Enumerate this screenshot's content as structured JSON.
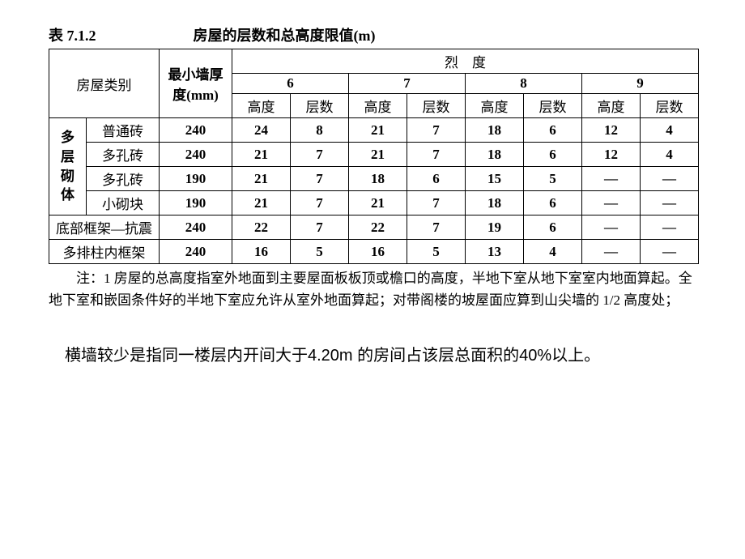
{
  "header": {
    "table_number": "表 7.1.2",
    "title": "房屋的层数和总高度限值(m)"
  },
  "columns": {
    "category": "房屋类别",
    "thickness": "最小墙厚度(mm)",
    "intensity": "烈　度",
    "levels": [
      "6",
      "7",
      "8",
      "9"
    ],
    "sub": {
      "height": "高度",
      "floors": "层数"
    }
  },
  "group_label": "多层砌体",
  "rows": [
    {
      "cat2": "普通砖",
      "thk": "240",
      "v": [
        "24",
        "8",
        "21",
        "7",
        "18",
        "6",
        "12",
        "4"
      ]
    },
    {
      "cat2": "多孔砖",
      "thk": "240",
      "v": [
        "21",
        "7",
        "21",
        "7",
        "18",
        "6",
        "12",
        "4"
      ]
    },
    {
      "cat2": "多孔砖",
      "thk": "190",
      "v": [
        "21",
        "7",
        "18",
        "6",
        "15",
        "5",
        "—",
        "—"
      ]
    },
    {
      "cat2": "小砌块",
      "thk": "190",
      "v": [
        "21",
        "7",
        "21",
        "7",
        "18",
        "6",
        "—",
        "—"
      ]
    }
  ],
  "rows2": [
    {
      "cat": "底部框架—抗震",
      "thk": "240",
      "v": [
        "22",
        "7",
        "22",
        "7",
        "19",
        "6",
        "—",
        "—"
      ]
    },
    {
      "cat": "多排柱内框架",
      "thk": "240",
      "v": [
        "16",
        "5",
        "16",
        "5",
        "13",
        "4",
        "—",
        "—"
      ]
    }
  ],
  "note": "注：1 房屋的总高度指室外地面到主要屋面板板顶或檐口的高度，半地下室从地下室室内地面算起。全地下室和嵌固条件好的半地下室应允许从室外地面算起；对带阁楼的坡屋面应算到山尖墙的 1/2 高度处；",
  "body": "横墙较少是指同一楼层内开间大于4.20m 的房间占该层总面积的40%以上。"
}
